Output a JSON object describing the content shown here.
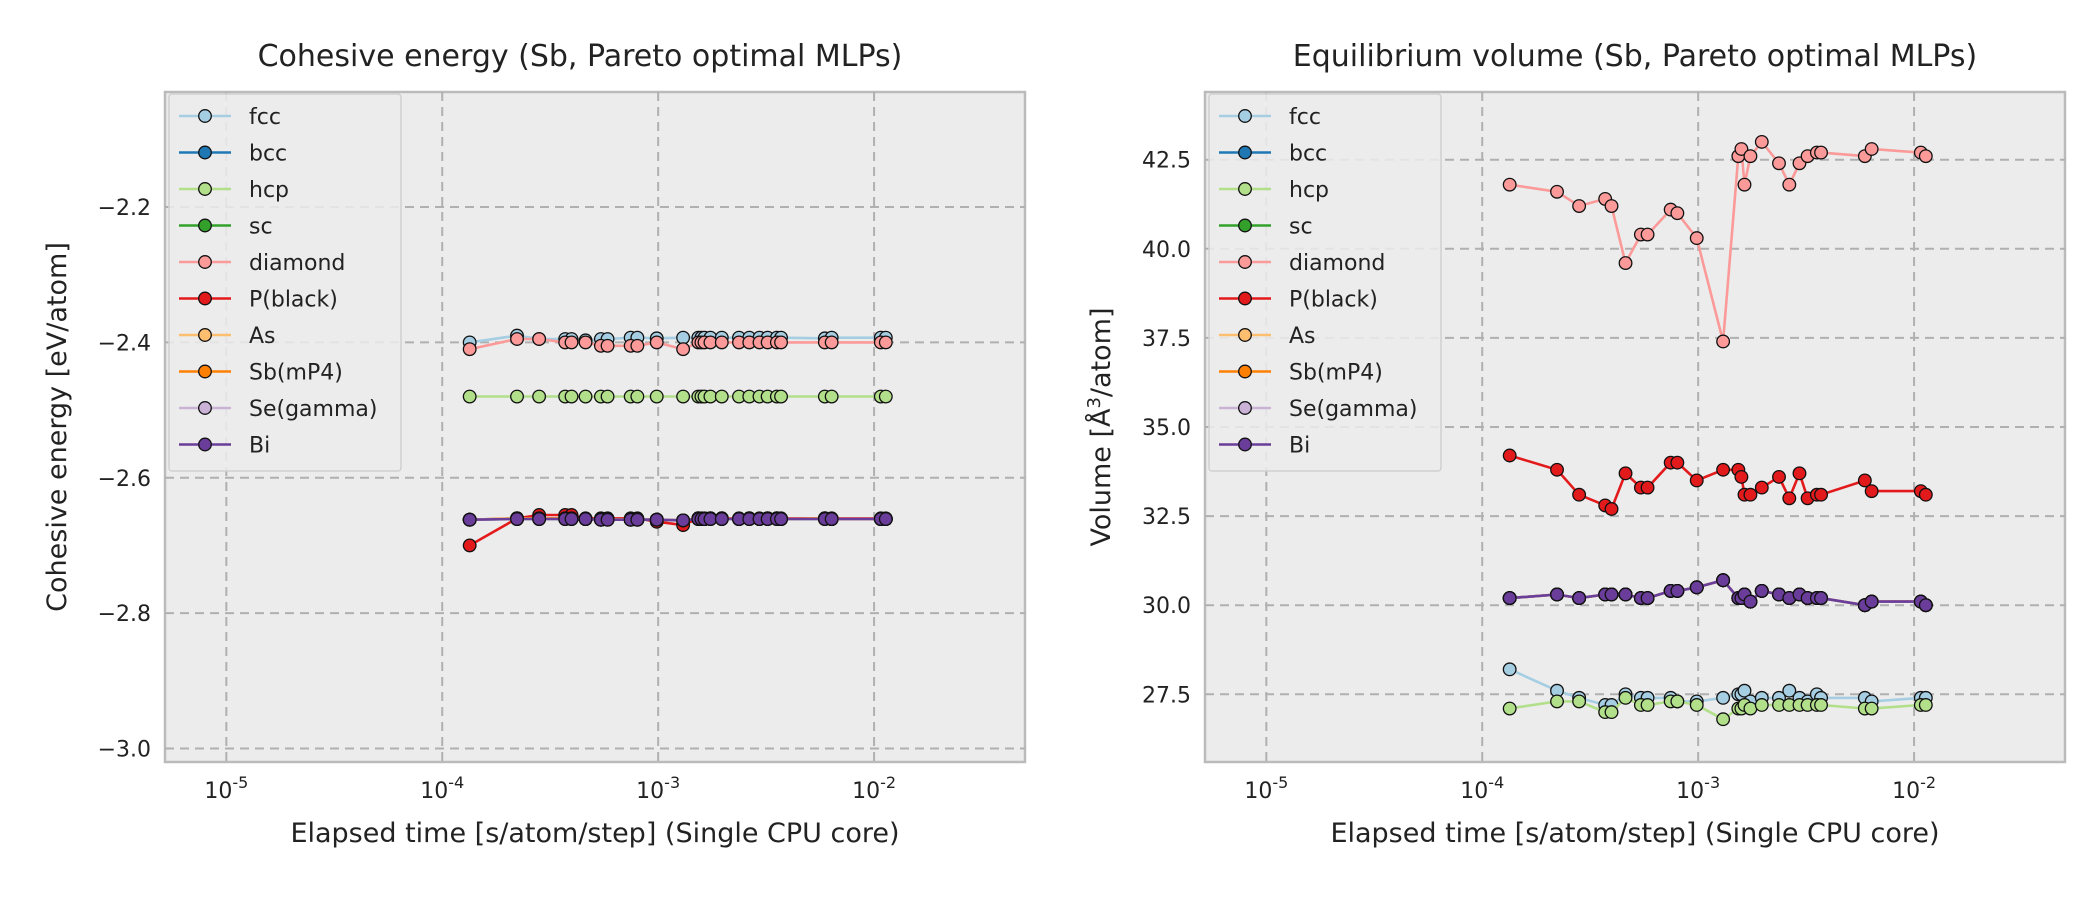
{
  "chart_data": [
    {
      "type": "line",
      "title": "Cohesive energy (Sb, Pareto optimal MLPs)",
      "xlabel": "Elapsed time [s/atom/step] (Single CPU core)",
      "ylabel": "Cohesive energy [eV/atom]",
      "xscale": "log",
      "xlim": [
        5.2e-06,
        0.05
      ],
      "ylim": [
        -3.02,
        -2.03
      ],
      "x_ticks": [
        "1e-5",
        "1e-4",
        "1e-3",
        "1e-2"
      ],
      "y_ticks": [
        -3.0,
        -2.8,
        -2.6,
        -2.4,
        -2.2
      ],
      "y_tick_labels": [
        "−3.0",
        "−2.8",
        "−2.6",
        "−2.4",
        "−2.2"
      ],
      "grid": true,
      "legend_position": "upper-left",
      "x": [
        0.000134,
        0.000222,
        0.000281,
        0.000371,
        0.000397,
        0.000461,
        0.000543,
        0.000583,
        0.000746,
        0.000801,
        0.000985,
        0.001305,
        0.001535,
        0.001586,
        0.001639,
        0.001746,
        0.001971,
        0.002368,
        0.002643,
        0.002946,
        0.003213,
        0.003546,
        0.003708,
        0.005916,
        0.006361,
        0.010745,
        0.011332
      ],
      "series": [
        {
          "name": "fcc",
          "color": "#a6cee3",
          "values": [
            -2.4,
            -2.39,
            -2.395,
            -2.395,
            -2.395,
            -2.397,
            -2.395,
            -2.395,
            -2.393,
            -2.393,
            -2.394,
            -2.393,
            -2.393,
            -2.393,
            -2.393,
            -2.393,
            -2.393,
            -2.393,
            -2.393,
            -2.393,
            -2.393,
            -2.393,
            -2.393,
            -2.394,
            -2.393,
            -2.393,
            -2.393
          ]
        },
        {
          "name": "bcc",
          "color": "#1f78b4",
          "values": [
            -2.662,
            -2.66,
            -2.66,
            -2.66,
            -2.66,
            -2.661,
            -2.662,
            -2.661,
            -2.662,
            -2.662,
            -2.662,
            -2.663,
            -2.66,
            -2.661,
            -2.661,
            -2.66,
            -2.66,
            -2.661,
            -2.66,
            -2.661,
            -2.66,
            -2.66,
            -2.661,
            -2.66,
            -2.661,
            -2.661,
            -2.661
          ]
        },
        {
          "name": "hcp",
          "color": "#b2df8a",
          "values": [
            -2.48,
            -2.48,
            -2.48,
            -2.48,
            -2.48,
            -2.48,
            -2.48,
            -2.48,
            -2.48,
            -2.48,
            -2.48,
            -2.48,
            -2.48,
            -2.48,
            -2.48,
            -2.48,
            -2.48,
            -2.48,
            -2.48,
            -2.48,
            -2.48,
            -2.48,
            -2.48,
            -2.48,
            -2.48,
            -2.48,
            -2.48
          ]
        },
        {
          "name": "sc",
          "color": "#33a02c",
          "values": [
            -2.662,
            -2.661,
            -2.661,
            -2.661,
            -2.661,
            -2.661,
            -2.662,
            -2.662,
            -2.662,
            -2.662,
            -2.662,
            -2.663,
            -2.661,
            -2.661,
            -2.661,
            -2.661,
            -2.661,
            -2.661,
            -2.661,
            -2.661,
            -2.661,
            -2.661,
            -2.661,
            -2.661,
            -2.661,
            -2.661,
            -2.661
          ]
        },
        {
          "name": "diamond",
          "color": "#fb9a99",
          "values": [
            -2.41,
            -2.395,
            -2.395,
            -2.4,
            -2.4,
            -2.4,
            -2.405,
            -2.405,
            -2.405,
            -2.405,
            -2.4,
            -2.41,
            -2.4,
            -2.4,
            -2.4,
            -2.4,
            -2.4,
            -2.4,
            -2.4,
            -2.4,
            -2.4,
            -2.4,
            -2.4,
            -2.4,
            -2.4,
            -2.4,
            -2.4
          ]
        },
        {
          "name": "P(black)",
          "color": "#e31a1c",
          "values": [
            -2.7,
            -2.66,
            -2.655,
            -2.655,
            -2.655,
            -2.66,
            -2.66,
            -2.66,
            -2.66,
            -2.66,
            -2.665,
            -2.67,
            -2.66,
            -2.66,
            -2.66,
            -2.66,
            -2.66,
            -2.66,
            -2.66,
            -2.66,
            -2.66,
            -2.66,
            -2.66,
            -2.66,
            -2.66,
            -2.66,
            -2.66
          ]
        },
        {
          "name": "As",
          "color": "#fdbf6f",
          "values": [
            -2.662,
            -2.66,
            -2.66,
            -2.66,
            -2.66,
            -2.661,
            -2.662,
            -2.661,
            -2.662,
            -2.662,
            -2.662,
            -2.663,
            -2.66,
            -2.661,
            -2.661,
            -2.66,
            -2.66,
            -2.661,
            -2.66,
            -2.661,
            -2.66,
            -2.66,
            -2.661,
            -2.66,
            -2.661,
            -2.661,
            -2.661
          ]
        },
        {
          "name": "Sb(mP4)",
          "color": "#ff7f00",
          "values": [
            -2.662,
            -2.66,
            -2.66,
            -2.66,
            -2.66,
            -2.661,
            -2.662,
            -2.661,
            -2.662,
            -2.662,
            -2.662,
            -2.663,
            -2.66,
            -2.661,
            -2.661,
            -2.66,
            -2.66,
            -2.661,
            -2.66,
            -2.661,
            -2.66,
            -2.66,
            -2.661,
            -2.66,
            -2.661,
            -2.661,
            -2.661
          ]
        },
        {
          "name": "Se(gamma)",
          "color": "#cab2d6",
          "values": [
            -2.662,
            -2.661,
            -2.661,
            -2.661,
            -2.661,
            -2.661,
            -2.662,
            -2.662,
            -2.662,
            -2.662,
            -2.662,
            -2.663,
            -2.661,
            -2.661,
            -2.661,
            -2.661,
            -2.661,
            -2.661,
            -2.661,
            -2.661,
            -2.661,
            -2.661,
            -2.661,
            -2.661,
            -2.661,
            -2.661,
            -2.661
          ]
        },
        {
          "name": "Bi",
          "color": "#6a3d9a",
          "values": [
            -2.662,
            -2.661,
            -2.661,
            -2.661,
            -2.661,
            -2.661,
            -2.662,
            -2.662,
            -2.662,
            -2.662,
            -2.662,
            -2.663,
            -2.661,
            -2.661,
            -2.661,
            -2.661,
            -2.661,
            -2.661,
            -2.661,
            -2.661,
            -2.661,
            -2.661,
            -2.661,
            -2.661,
            -2.661,
            -2.661,
            -2.661
          ]
        }
      ]
    },
    {
      "type": "line",
      "title": "Equilibrium volume (Sb, Pareto optimal MLPs)",
      "xlabel": "Elapsed time [s/atom/step] (Single CPU core)",
      "ylabel": "Volume [Å³/atom]",
      "ylabel_main": "Volume [Å",
      "ylabel_sup": "3",
      "ylabel_end": "/atom]",
      "xscale": "log",
      "xlim": [
        5.2e-06,
        0.05
      ],
      "ylim": [
        25.6,
        44.4
      ],
      "x_ticks": [
        "1e-5",
        "1e-4",
        "1e-3",
        "1e-2"
      ],
      "y_ticks": [
        27.5,
        30.0,
        32.5,
        35.0,
        37.5,
        40.0,
        42.5
      ],
      "y_tick_labels": [
        "27.5",
        "30.0",
        "32.5",
        "35.0",
        "37.5",
        "40.0",
        "42.5"
      ],
      "grid": true,
      "legend_position": "upper-left",
      "x": [
        0.000134,
        0.000222,
        0.000281,
        0.000371,
        0.000397,
        0.000461,
        0.000543,
        0.000583,
        0.000746,
        0.000801,
        0.000985,
        0.001305,
        0.001535,
        0.001586,
        0.001639,
        0.001746,
        0.001971,
        0.002368,
        0.002643,
        0.002946,
        0.003213,
        0.003546,
        0.003708,
        0.005916,
        0.006361,
        0.010745,
        0.011332
      ],
      "series": [
        {
          "name": "fcc",
          "color": "#a6cee3",
          "values": [
            28.2,
            27.6,
            27.4,
            27.2,
            27.2,
            27.5,
            27.4,
            27.4,
            27.4,
            27.3,
            27.3,
            27.4,
            27.5,
            27.5,
            27.6,
            27.3,
            27.4,
            27.4,
            27.6,
            27.4,
            27.3,
            27.5,
            27.4,
            27.4,
            27.3,
            27.4,
            27.4
          ]
        },
        {
          "name": "bcc",
          "color": "#1f78b4",
          "values": [
            30.2,
            30.3,
            30.2,
            30.3,
            30.3,
            30.3,
            30.2,
            30.2,
            30.4,
            30.4,
            30.5,
            30.7,
            30.2,
            30.2,
            30.3,
            30.1,
            30.4,
            30.3,
            30.2,
            30.3,
            30.2,
            30.2,
            30.2,
            30.0,
            30.1,
            30.1,
            30.0
          ]
        },
        {
          "name": "hcp",
          "color": "#b2df8a",
          "values": [
            27.1,
            27.3,
            27.3,
            27.0,
            27.0,
            27.4,
            27.2,
            27.2,
            27.3,
            27.3,
            27.2,
            26.8,
            27.1,
            27.1,
            27.2,
            27.1,
            27.2,
            27.2,
            27.2,
            27.2,
            27.2,
            27.2,
            27.2,
            27.1,
            27.1,
            27.2,
            27.2
          ]
        },
        {
          "name": "sc",
          "color": "#33a02c",
          "values": [
            30.2,
            30.3,
            30.2,
            30.3,
            30.3,
            30.3,
            30.2,
            30.2,
            30.4,
            30.4,
            30.5,
            30.7,
            30.2,
            30.2,
            30.3,
            30.1,
            30.4,
            30.3,
            30.2,
            30.3,
            30.2,
            30.2,
            30.2,
            30.0,
            30.1,
            30.1,
            30.0
          ]
        },
        {
          "name": "diamond",
          "color": "#fb9a99",
          "values": [
            41.8,
            41.6,
            41.2,
            41.4,
            41.2,
            39.6,
            40.4,
            40.4,
            41.1,
            41.0,
            40.3,
            37.4,
            42.6,
            42.8,
            41.8,
            42.6,
            43.0,
            42.4,
            41.8,
            42.4,
            42.6,
            42.7,
            42.7,
            42.6,
            42.8,
            42.7,
            42.6
          ]
        },
        {
          "name": "P(black)",
          "color": "#e31a1c",
          "values": [
            34.2,
            33.8,
            33.1,
            32.8,
            32.7,
            33.7,
            33.3,
            33.3,
            34.0,
            34.0,
            33.5,
            33.8,
            33.8,
            33.6,
            33.1,
            33.1,
            33.3,
            33.6,
            33.0,
            33.7,
            33.0,
            33.1,
            33.1,
            33.5,
            33.2,
            33.2,
            33.1
          ]
        },
        {
          "name": "As",
          "color": "#fdbf6f",
          "values": [
            30.2,
            30.3,
            30.2,
            30.3,
            30.3,
            30.3,
            30.2,
            30.2,
            30.4,
            30.4,
            30.5,
            30.7,
            30.2,
            30.2,
            30.3,
            30.1,
            30.4,
            30.3,
            30.2,
            30.3,
            30.2,
            30.2,
            30.2,
            30.0,
            30.1,
            30.1,
            30.0
          ]
        },
        {
          "name": "Sb(mP4)",
          "color": "#ff7f00",
          "values": [
            30.2,
            30.3,
            30.2,
            30.3,
            30.3,
            30.3,
            30.2,
            30.2,
            30.4,
            30.4,
            30.5,
            30.7,
            30.2,
            30.2,
            30.3,
            30.1,
            30.4,
            30.3,
            30.2,
            30.3,
            30.2,
            30.2,
            30.2,
            30.0,
            30.1,
            30.1,
            30.0
          ]
        },
        {
          "name": "Se(gamma)",
          "color": "#cab2d6",
          "values": [
            30.2,
            30.3,
            30.2,
            30.3,
            30.3,
            30.3,
            30.2,
            30.2,
            30.4,
            30.4,
            30.5,
            30.7,
            30.2,
            30.2,
            30.3,
            30.1,
            30.4,
            30.3,
            30.2,
            30.3,
            30.2,
            30.2,
            30.2,
            30.0,
            30.1,
            30.1,
            30.0
          ]
        },
        {
          "name": "Bi",
          "color": "#6a3d9a",
          "values": [
            30.2,
            30.3,
            30.2,
            30.3,
            30.3,
            30.3,
            30.2,
            30.2,
            30.4,
            30.4,
            30.5,
            30.7,
            30.2,
            30.2,
            30.3,
            30.1,
            30.4,
            30.3,
            30.2,
            30.3,
            30.2,
            30.2,
            30.2,
            30.0,
            30.1,
            30.1,
            30.0
          ]
        }
      ]
    }
  ]
}
